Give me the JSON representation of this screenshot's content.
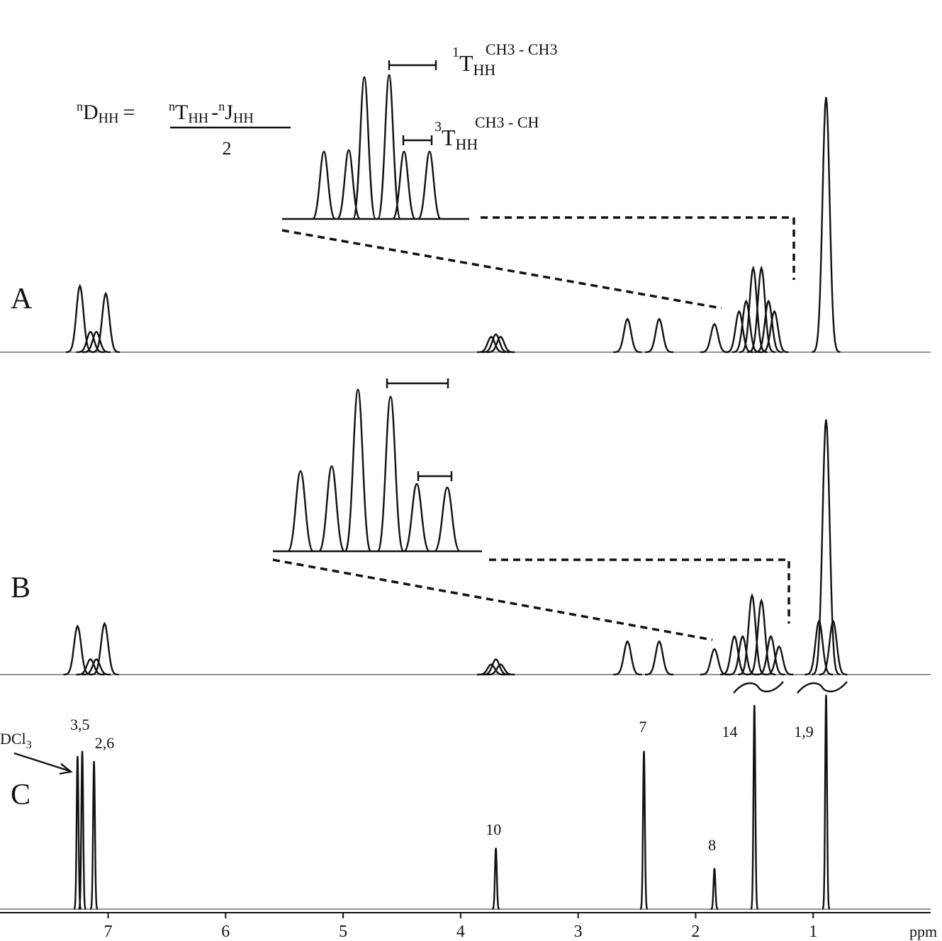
{
  "chart_data": {
    "type": "nmr",
    "xlabel": "ppm",
    "xlim": [
      7.92,
      0
    ],
    "xticks": [
      7,
      6,
      5,
      4,
      3,
      2,
      1
    ],
    "panels": [
      {
        "label": "A",
        "ppm": [
          7.24,
          7.15,
          7.1,
          7.02,
          3.74,
          3.7,
          3.66,
          2.58,
          2.31,
          1.84,
          1.63,
          1.57,
          1.51,
          1.44,
          1.38,
          1.33,
          0.89
        ],
        "height": [
          26,
          8,
          8,
          23,
          6,
          7,
          6,
          13,
          13,
          11,
          16,
          20,
          33,
          33,
          20,
          16,
          100
        ]
      },
      {
        "label": "B",
        "ppm": [
          7.26,
          7.15,
          7.1,
          7.03,
          3.74,
          3.7,
          3.66,
          2.58,
          2.31,
          1.84,
          1.67,
          1.6,
          1.52,
          1.44,
          1.36,
          1.29,
          0.95,
          0.89,
          0.83
        ],
        "height": [
          19,
          6,
          6,
          20,
          4,
          6,
          4,
          13,
          13,
          10,
          15,
          15,
          31,
          29,
          15,
          11,
          21,
          100,
          21
        ]
      },
      {
        "label": "C",
        "ppm": [
          7.26,
          7.22,
          7.12,
          3.7,
          2.44,
          1.84,
          1.5,
          0.89
        ],
        "height": [
          60,
          62,
          58,
          24,
          62,
          16,
          80,
          84
        ]
      }
    ],
    "peak_labels": [
      {
        "text": "3,5",
        "ppm": 7.24
      },
      {
        "text": "2,6",
        "ppm": 7.03
      },
      {
        "text": "10",
        "ppm": 3.72
      },
      {
        "text": "7",
        "ppm": 2.45
      },
      {
        "text": "8",
        "ppm": 1.86
      },
      {
        "text": "14",
        "ppm": 1.71
      },
      {
        "text": "1,9",
        "ppm": 1.08
      }
    ],
    "solvent": {
      "text": "DCl",
      "sub": "3"
    },
    "formula": {
      "left": [
        "n",
        "D",
        "HH"
      ],
      "equals": "=",
      "t": [
        "n",
        "T",
        "HH"
      ],
      "minus": "-",
      "j": [
        "n",
        "J",
        "HH"
      ],
      "denominator": "2"
    },
    "coupling_labels": [
      {
        "sup": "1",
        "main": "T",
        "sub": "HH",
        "tag": "CH3 - CH3"
      },
      {
        "sup": "3",
        "main": "T",
        "sub": "HH",
        "tag": "CH3 - CH"
      }
    ]
  }
}
